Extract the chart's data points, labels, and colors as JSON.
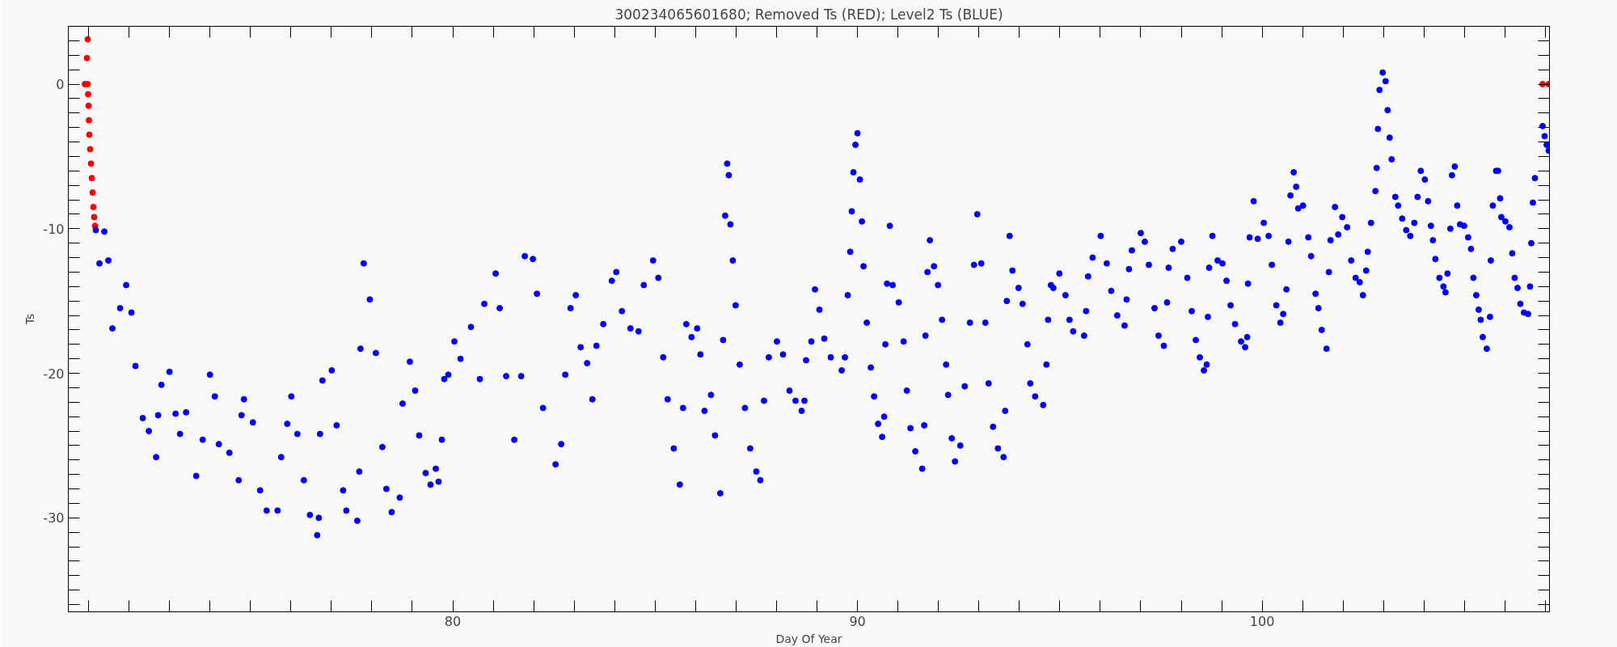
{
  "chart_data": {
    "type": "scatter",
    "title": "300234065601680; Removed Ts (RED); Level2 Ts (BLUE)",
    "xlabel": "Day Of Year",
    "ylabel": "Ts",
    "xlim": [
      70.5,
      107.1
    ],
    "ylim": [
      -36.5,
      4
    ],
    "xticks": [
      {
        "value": 71,
        "label": null
      },
      {
        "value": 72,
        "label": null
      },
      {
        "value": 73,
        "label": null
      },
      {
        "value": 74,
        "label": null
      },
      {
        "value": 75,
        "label": null
      },
      {
        "value": 76,
        "label": null
      },
      {
        "value": 77,
        "label": null
      },
      {
        "value": 78,
        "label": null
      },
      {
        "value": 79,
        "label": null
      },
      80,
      {
        "value": 81,
        "label": null
      },
      {
        "value": 82,
        "label": null
      },
      {
        "value": 83,
        "label": null
      },
      {
        "value": 84,
        "label": null
      },
      {
        "value": 85,
        "label": null
      },
      {
        "value": 86,
        "label": null
      },
      {
        "value": 87,
        "label": null
      },
      {
        "value": 88,
        "label": null
      },
      {
        "value": 89,
        "label": null
      },
      90,
      {
        "value": 91,
        "label": null
      },
      {
        "value": 92,
        "label": null
      },
      {
        "value": 93,
        "label": null
      },
      {
        "value": 94,
        "label": null
      },
      {
        "value": 95,
        "label": null
      },
      {
        "value": 96,
        "label": null
      },
      {
        "value": 97,
        "label": null
      },
      {
        "value": 98,
        "label": null
      },
      {
        "value": 99,
        "label": null
      },
      100,
      {
        "value": 101,
        "label": null
      },
      {
        "value": 102,
        "label": null
      },
      {
        "value": 103,
        "label": null
      },
      {
        "value": 104,
        "label": null
      },
      {
        "value": 105,
        "label": null
      },
      {
        "value": 106,
        "label": null
      },
      {
        "value": 107,
        "label": null
      }
    ],
    "yticks": [
      {
        "value": -36,
        "label": null
      },
      {
        "value": -35,
        "label": null
      },
      {
        "value": -34,
        "label": null
      },
      {
        "value": -33,
        "label": null
      },
      {
        "value": -32,
        "label": null
      },
      {
        "value": -31,
        "label": null
      },
      -30,
      {
        "value": -29,
        "label": null
      },
      {
        "value": -28,
        "label": null
      },
      {
        "value": -27,
        "label": null
      },
      {
        "value": -26,
        "label": null
      },
      {
        "value": -25,
        "label": null
      },
      {
        "value": -24,
        "label": null
      },
      {
        "value": -23,
        "label": null
      },
      {
        "value": -22,
        "label": null
      },
      {
        "value": -21,
        "label": null
      },
      -20,
      {
        "value": -19,
        "label": null
      },
      {
        "value": -18,
        "label": null
      },
      {
        "value": -17,
        "label": null
      },
      {
        "value": -16,
        "label": null
      },
      {
        "value": -15,
        "label": null
      },
      {
        "value": -14,
        "label": null
      },
      {
        "value": -13,
        "label": null
      },
      {
        "value": -12,
        "label": null
      },
      {
        "value": -11,
        "label": null
      },
      -10,
      {
        "value": -9,
        "label": null
      },
      {
        "value": -8,
        "label": null
      },
      {
        "value": -7,
        "label": null
      },
      {
        "value": -6,
        "label": null
      },
      {
        "value": -5,
        "label": null
      },
      {
        "value": -4,
        "label": null
      },
      {
        "value": -3,
        "label": null
      },
      {
        "value": -2,
        "label": null
      },
      {
        "value": -1,
        "label": null
      },
      0,
      {
        "value": 1,
        "label": null
      },
      {
        "value": 2,
        "label": null
      },
      {
        "value": 3,
        "label": null
      }
    ],
    "grid": false,
    "marker": "circle",
    "series": [
      {
        "color": "#ff0000",
        "x": [
          70.98,
          70.96,
          70.91,
          70.98,
          70.99,
          71.0,
          71.01,
          71.02,
          71.04,
          71.06,
          71.08,
          71.1,
          71.12,
          71.14,
          71.16,
          106.93,
          107.08
        ],
        "values": [
          3.1,
          1.8,
          0,
          0,
          -0.7,
          -1.5,
          -2.5,
          -3.5,
          -4.5,
          -5.5,
          -6.5,
          -7.5,
          -8.5,
          -9.2,
          -9.8,
          0,
          0
        ]
      },
      {
        "color": "#0000ff",
        "x": [
          71.18,
          71.27,
          71.39,
          71.49,
          71.59,
          71.78,
          71.93,
          72.06,
          72.16,
          72.34,
          72.49,
          72.67,
          72.72,
          72.8,
          73.0,
          73.15,
          73.26,
          73.41,
          73.66,
          73.82,
          74.0,
          74.12,
          74.22,
          74.48,
          74.71,
          74.78,
          74.84,
          75.06,
          75.24,
          75.4,
          75.67,
          75.76,
          75.91,
          76.01,
          76.16,
          76.32,
          76.47,
          76.65,
          76.69,
          76.72,
          76.78,
          77.01,
          77.13,
          77.29,
          77.37,
          77.64,
          77.69,
          77.72,
          77.8,
          77.95,
          78.1,
          78.26,
          78.36,
          78.49,
          78.69,
          78.76,
          78.94,
          79.07,
          79.17,
          79.33,
          79.45,
          79.58,
          79.65,
          79.73,
          79.79,
          79.89,
          80.04,
          80.19,
          80.45,
          80.67,
          80.78,
          81.06,
          81.16,
          81.32,
          81.52,
          81.69,
          81.78,
          81.98,
          82.08,
          82.23,
          82.54,
          82.68,
          82.78,
          82.91,
          83.04,
          83.16,
          83.32,
          83.45,
          83.55,
          83.72,
          83.93,
          84.04,
          84.18,
          84.39,
          84.59,
          84.72,
          84.95,
          85.08,
          85.2,
          85.31,
          85.46,
          85.61,
          85.69,
          85.77,
          85.9,
          86.04,
          86.12,
          86.22,
          86.38,
          86.48,
          86.61,
          86.68,
          86.73,
          86.78,
          86.82,
          86.86,
          86.92,
          86.99,
          87.09,
          87.22,
          87.35,
          87.5,
          87.6,
          87.69,
          87.81,
          88.01,
          88.16,
          88.32,
          88.47,
          88.62,
          88.69,
          88.73,
          88.86,
          88.95,
          89.06,
          89.18,
          89.34,
          89.61,
          89.69,
          89.76,
          89.82,
          89.86,
          89.9,
          89.95,
          90.0,
          90.06,
          90.11,
          90.15,
          90.23,
          90.33,
          90.41,
          90.51,
          90.61,
          90.66,
          90.69,
          90.73,
          90.8,
          90.87,
          91.02,
          91.14,
          91.22,
          91.31,
          91.43,
          91.6,
          91.65,
          91.68,
          91.73,
          91.79,
          91.89,
          91.99,
          92.09,
          92.19,
          92.24,
          92.33,
          92.41,
          92.54,
          92.65,
          92.78,
          92.88,
          92.96,
          93.06,
          93.16,
          93.24,
          93.35,
          93.47,
          93.61,
          93.65,
          93.69,
          93.76,
          93.83,
          93.98,
          94.08,
          94.2,
          94.27,
          94.39,
          94.59,
          94.67,
          94.71,
          94.78,
          94.84,
          94.99,
          95.14,
          95.24,
          95.33,
          95.6,
          95.65,
          95.7,
          95.81,
          96.01,
          96.16,
          96.27,
          96.42,
          96.6,
          96.65,
          96.71,
          96.78,
          97.0,
          97.1,
          97.2,
          97.34,
          97.44,
          97.57,
          97.65,
          97.69,
          97.79,
          98.0,
          98.15,
          98.26,
          98.36,
          98.46,
          98.56,
          98.63,
          98.66,
          98.69,
          98.77,
          98.9,
          99.02,
          99.12,
          99.22,
          99.33,
          99.48,
          99.58,
          99.63,
          99.65,
          99.69,
          99.79,
          99.89,
          100.04,
          100.16,
          100.24,
          100.35,
          100.45,
          100.52,
          100.6,
          100.65,
          100.7,
          100.78,
          100.84,
          100.89,
          101.01,
          101.14,
          101.21,
          101.32,
          101.39,
          101.47,
          101.59,
          101.65,
          101.69,
          101.8,
          101.88,
          101.98,
          102.1,
          102.2,
          102.31,
          102.41,
          102.49,
          102.57,
          102.61,
          102.69,
          102.8,
          102.83,
          102.86,
          102.9,
          102.98,
          103.05,
          103.1,
          103.15,
          103.2,
          103.29,
          103.36,
          103.46,
          103.56,
          103.66,
          103.76,
          103.84,
          103.92,
          104.02,
          104.1,
          104.17,
          104.22,
          104.28,
          104.38,
          104.48,
          104.53,
          104.58,
          104.65,
          104.69,
          104.76,
          104.82,
          104.89,
          104.99,
          105.09,
          105.16,
          105.22,
          105.29,
          105.35,
          105.4,
          105.45,
          105.55,
          105.63,
          105.65,
          105.7,
          105.78,
          105.83,
          105.88,
          105.91,
          106.01,
          106.11,
          106.18,
          106.24,
          106.31,
          106.38,
          106.47,
          106.57,
          106.62,
          106.65,
          106.69,
          106.74,
          106.93,
          106.98,
          107.03,
          107.08
        ],
        "values": [
          -10.1,
          -12.4,
          -10.2,
          -12.2,
          -16.9,
          -15.5,
          -13.9,
          -15.8,
          -19.5,
          -23.1,
          -24.0,
          -25.8,
          -22.9,
          -20.8,
          -19.9,
          -22.8,
          -24.2,
          -22.7,
          -27.1,
          -24.6,
          -20.1,
          -21.6,
          -24.9,
          -25.5,
          -27.4,
          -22.9,
          -21.8,
          -23.4,
          -28.1,
          -29.5,
          -29.5,
          -25.8,
          -23.5,
          -21.6,
          -24.2,
          -27.4,
          -29.8,
          -31.2,
          -30.0,
          -24.2,
          -20.5,
          -19.8,
          -23.6,
          -28.1,
          -29.5,
          -30.2,
          -26.8,
          -18.3,
          -12.4,
          -14.9,
          -18.6,
          -25.1,
          -28.0,
          -29.6,
          -28.6,
          -22.1,
          -19.2,
          -21.2,
          -24.3,
          -26.9,
          -27.7,
          -26.6,
          -27.5,
          -24.6,
          -20.4,
          -20.1,
          -17.8,
          -19.0,
          -16.8,
          -20.4,
          -15.2,
          -13.1,
          -15.5,
          -20.2,
          -24.6,
          -20.2,
          -11.9,
          -12.1,
          -14.5,
          -22.4,
          -26.3,
          -24.9,
          -20.1,
          -15.5,
          -14.6,
          -18.2,
          -19.3,
          -21.8,
          -18.1,
          -16.6,
          -13.6,
          -13.0,
          -15.7,
          -16.9,
          -17.1,
          -13.9,
          -12.2,
          -13.4,
          -18.9,
          -21.8,
          -25.2,
          -27.7,
          -22.4,
          -16.6,
          -17.5,
          -16.9,
          -18.7,
          -22.6,
          -21.5,
          -24.3,
          -28.3,
          -17.7,
          -9.1,
          -5.5,
          -6.3,
          -9.7,
          -12.2,
          -15.3,
          -19.4,
          -22.4,
          -25.2,
          -26.8,
          -27.4,
          -21.9,
          -18.9,
          -17.8,
          -18.7,
          -21.2,
          -21.9,
          -22.6,
          -21.9,
          -19.1,
          -17.8,
          -14.2,
          -15.6,
          -17.6,
          -18.9,
          -19.8,
          -18.9,
          -14.6,
          -11.6,
          -8.8,
          -6.1,
          -4.2,
          -3.4,
          -6.6,
          -9.5,
          -12.6,
          -16.5,
          -19.6,
          -21.6,
          -23.5,
          -24.4,
          -23.0,
          -18.0,
          -13.8,
          -9.8,
          -13.9,
          -15.1,
          -17.8,
          -21.2,
          -23.8,
          -25.4,
          -26.6,
          -23.6,
          -17.4,
          -13.0,
          -10.8,
          -12.6,
          -13.9,
          -16.3,
          -19.4,
          -21.5,
          -24.5,
          -26.1,
          -25.0,
          -20.9,
          -16.5,
          -12.5,
          -9.0,
          -12.4,
          -16.5,
          -20.7,
          -23.7,
          -25.2,
          -25.8,
          -22.6,
          -15.0,
          -10.5,
          -12.9,
          -14.1,
          -15.2,
          -18.0,
          -20.7,
          -21.6,
          -22.2,
          -19.4,
          -16.3,
          -13.9,
          -14.1,
          -13.1,
          -14.6,
          -16.3,
          -17.1,
          -17.4,
          -15.7,
          -13.3,
          -12.0,
          -10.5,
          -12.4,
          -14.3,
          -16.0,
          -16.7,
          -14.9,
          -12.8,
          -11.5,
          -10.3,
          -10.9,
          -12.5,
          -15.5,
          -17.4,
          -18.1,
          -15.1,
          -12.7,
          -11.4,
          -10.9,
          -13.4,
          -15.7,
          -17.7,
          -18.9,
          -19.8,
          -19.4,
          -16.1,
          -12.7,
          -10.5,
          -12.2,
          -12.4,
          -13.6,
          -15.3,
          -16.6,
          -17.8,
          -18.2,
          -17.5,
          -13.8,
          -10.6,
          -8.1,
          -10.7,
          -9.6,
          -10.5,
          -12.5,
          -15.3,
          -16.5,
          -15.9,
          -14.2,
          -10.9,
          -7.7,
          -6.1,
          -7.1,
          -8.6,
          -8.4,
          -10.6,
          -11.9,
          -14.5,
          -15.5,
          -17.0,
          -18.3,
          -13.0,
          -10.8,
          -8.5,
          -10.4,
          -9.2,
          -9.9,
          -12.2,
          -13.4,
          -13.7,
          -14.6,
          -12.9,
          -11.6,
          -9.6,
          -7.4,
          -5.8,
          -3.1,
          -0.4,
          0.8,
          0.2,
          -1.8,
          -3.7,
          -5.2,
          -7.8,
          -8.4,
          -9.3,
          -10.1,
          -10.5,
          -9.6,
          -7.8,
          -6.0,
          -6.6,
          -8.1,
          -9.8,
          -10.8,
          -12.1,
          -13.4,
          -14.0,
          -14.4,
          -13.1,
          -10.0,
          -6.3,
          -5.7,
          -8.4,
          -9.7,
          -9.8,
          -10.6,
          -11.4,
          -13.4,
          -14.6,
          -15.6,
          -16.3,
          -17.5,
          -18.3,
          -16.1,
          -12.2,
          -8.4,
          -6.0,
          -6.0,
          -7.9,
          -9.2,
          -9.5,
          -9.9,
          -11.7,
          -13.4,
          -14.1,
          -15.2,
          -15.8,
          -15.9,
          -14.0,
          -11.0,
          -8.2,
          -6.5,
          -2.9,
          -3.6,
          -4.2,
          -4.6
        ]
      }
    ]
  }
}
